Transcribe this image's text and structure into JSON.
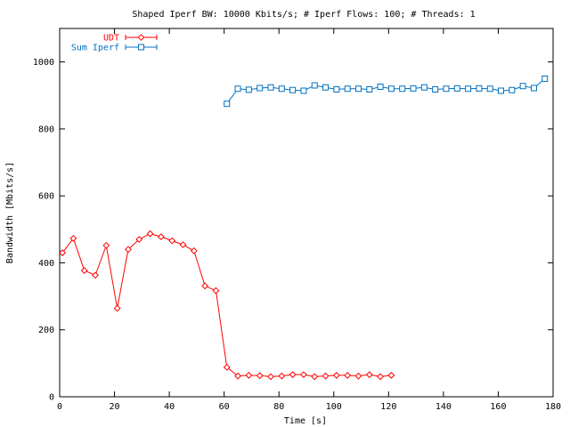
{
  "chart_data": {
    "type": "line",
    "title": "Shaped Iperf BW: 10000 Kbits/s; # Iperf Flows: 100; # Threads: 1",
    "xlabel": "Time [s]",
    "ylabel": "Bandwidth [Mbits/s]",
    "xlim": [
      0,
      180
    ],
    "ylim": [
      0,
      1100
    ],
    "x_ticks": [
      0,
      20,
      40,
      60,
      80,
      100,
      120,
      140,
      160,
      180
    ],
    "y_ticks": [
      0,
      200,
      400,
      600,
      800,
      1000
    ],
    "grid": false,
    "legend_position": "top-left",
    "series": [
      {
        "name": "UDT",
        "color": "#ff0000",
        "marker": "diamond",
        "x": [
          1,
          5,
          9,
          13,
          17,
          21,
          25,
          29,
          33,
          37,
          41,
          45,
          49,
          53,
          57,
          61,
          65,
          69,
          73,
          77,
          81,
          85,
          89,
          93,
          97,
          101,
          105,
          109,
          113,
          117,
          121
        ],
        "y": [
          430,
          473,
          377,
          363,
          452,
          264,
          440,
          470,
          487,
          478,
          466,
          454,
          436,
          331,
          317,
          88,
          62,
          64,
          63,
          60,
          62,
          66,
          66,
          60,
          62,
          64,
          64,
          62,
          66,
          60,
          64
        ]
      },
      {
        "name": "Sum Iperf",
        "color": "#0070c0",
        "marker": "square",
        "x": [
          61,
          65,
          69,
          73,
          77,
          81,
          85,
          89,
          93,
          97,
          101,
          105,
          109,
          113,
          117,
          121,
          125,
          129,
          133,
          137,
          141,
          145,
          149,
          153,
          157,
          161,
          165,
          169,
          173,
          177
        ],
        "y": [
          875,
          920,
          917,
          922,
          924,
          920,
          916,
          914,
          930,
          924,
          918,
          920,
          920,
          918,
          926,
          920,
          920,
          921,
          924,
          918,
          920,
          921,
          920,
          921,
          920,
          914,
          916,
          928,
          922,
          950
        ]
      }
    ]
  }
}
